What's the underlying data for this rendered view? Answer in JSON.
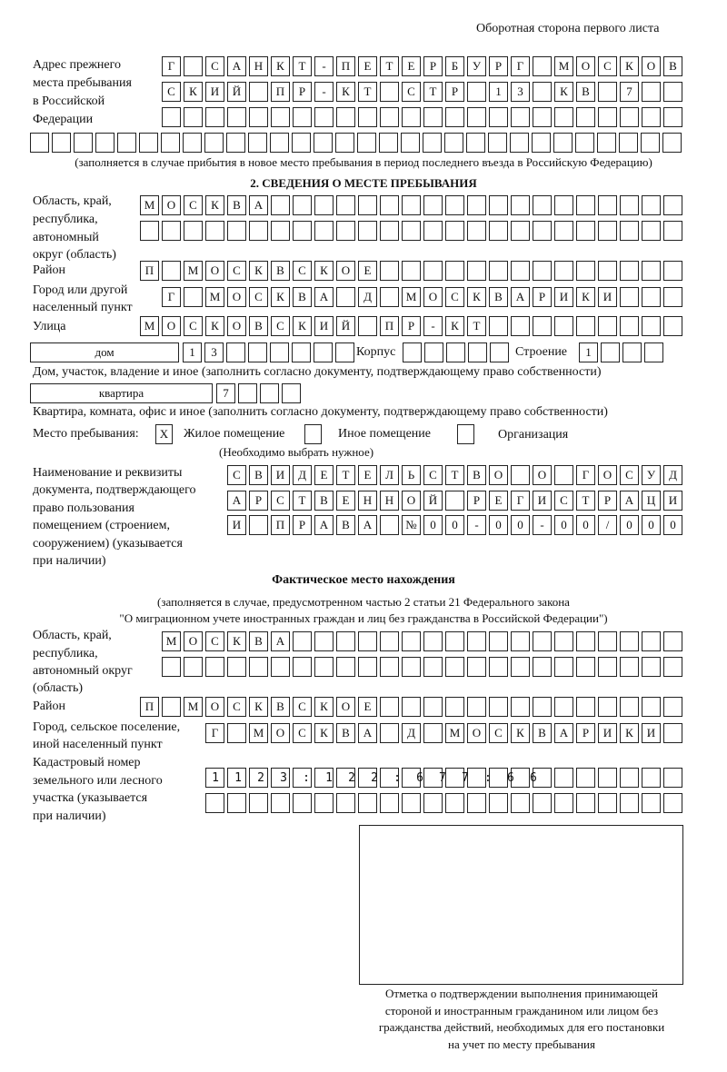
{
  "header": "Оборотная сторона первого листа",
  "prev_address": {
    "label": [
      "Адрес прежнего",
      "места пребывания",
      "в Российской",
      "Федерации"
    ],
    "rows": [
      "Г САНКТ-ПЕТЕРБУРГ МОСКОВ",
      "СКИЙ ПР-КТ СТР 13 КВ 7  ",
      "                        ",
      "                              "
    ],
    "note": "(заполняется в случае прибытия в новое место пребывания в период последнего въезда в Российскую Федерацию)"
  },
  "section2": {
    "title": "2. СВЕДЕНИЯ О МЕСТЕ ПРЕБЫВАНИЯ",
    "region_label": [
      "Область, край,",
      "республика,",
      "автономный",
      "округ (область)"
    ],
    "region_rows": [
      "МОСКВА                   ",
      "                         "
    ],
    "district_label": "Район",
    "district_row": "П МОСКВСКОЕ              ",
    "city_label": [
      "Город или другой",
      "населенный пункт"
    ],
    "city_row": "Г МОСКВА Д МОСКВАРИКИ   ",
    "street_label": "Улица",
    "street_row": "МОСКОВСКИЙ ПР-КТ         ",
    "house_type": "дом",
    "house_cells": "13      ",
    "building_label": "Корпус",
    "building_cells": "     ",
    "structure_label": "Строение",
    "structure_cells": "1   ",
    "house_note": "Дом, участок, владение и иное (заполнить согласно документу, подтверждающему право собственности)",
    "apt_type": "квартира",
    "apt_cells": "7   ",
    "apt_note": "Квартира, комната, офис и иное (заполнить согласно документу, подтверждающему право собственности)",
    "stay_label": "Место пребывания:",
    "options": [
      {
        "label": "Жилое помещение",
        "mark": "X"
      },
      {
        "label": "Иное помещение",
        "mark": ""
      },
      {
        "label": "Организация",
        "mark": ""
      }
    ],
    "choose_note": "(Необходимо выбрать нужное)",
    "doc_label": [
      "Наименование и реквизиты",
      "документа, подтверждающего",
      "право пользования",
      "помещением (строением,",
      "сооружением) (указывается",
      "при наличии)"
    ],
    "doc_rows": [
      "СВИДЕТЕЛЬСТВО О ГОСУД",
      "АРСТВЕННОЙ РЕГИСТРАЦИ",
      "И ПРАВА №00-00-00/000"
    ]
  },
  "actual": {
    "title": "Фактическое место нахождения",
    "note": [
      "(заполняется в случае, предусмотренном частью 2 статьи 21 Федерального закона",
      "\"О миграционном учете иностранных граждан и лиц без гражданства в Российской Федерации\")"
    ],
    "region_label": [
      "Область, край,",
      "республика,",
      "автономный округ",
      "(область)"
    ],
    "region_rows": [
      "МОСКВА                  ",
      "                        "
    ],
    "district_label": "Район",
    "district_row": "П МОСКВСКОЕ              ",
    "city_label": [
      "Город, сельское поселение,",
      "иной населенный пункт"
    ],
    "city_row": "Г МОСКВА Д МОСКВАРИКИ ",
    "cadastre_label": [
      "Кадастровый номер",
      "земельного или лесного",
      "участка (указывается",
      "при наличии)"
    ],
    "cadastre_rows": [
      "1123:122:677:66       ",
      "                      "
    ]
  },
  "confirm_note": [
    "Отметка о подтверждении выполнения принимающей",
    "стороной и иностранным гражданином или лицом без",
    "гражданства действий, необходимых для его постановки",
    "на учет по месту пребывания"
  ]
}
